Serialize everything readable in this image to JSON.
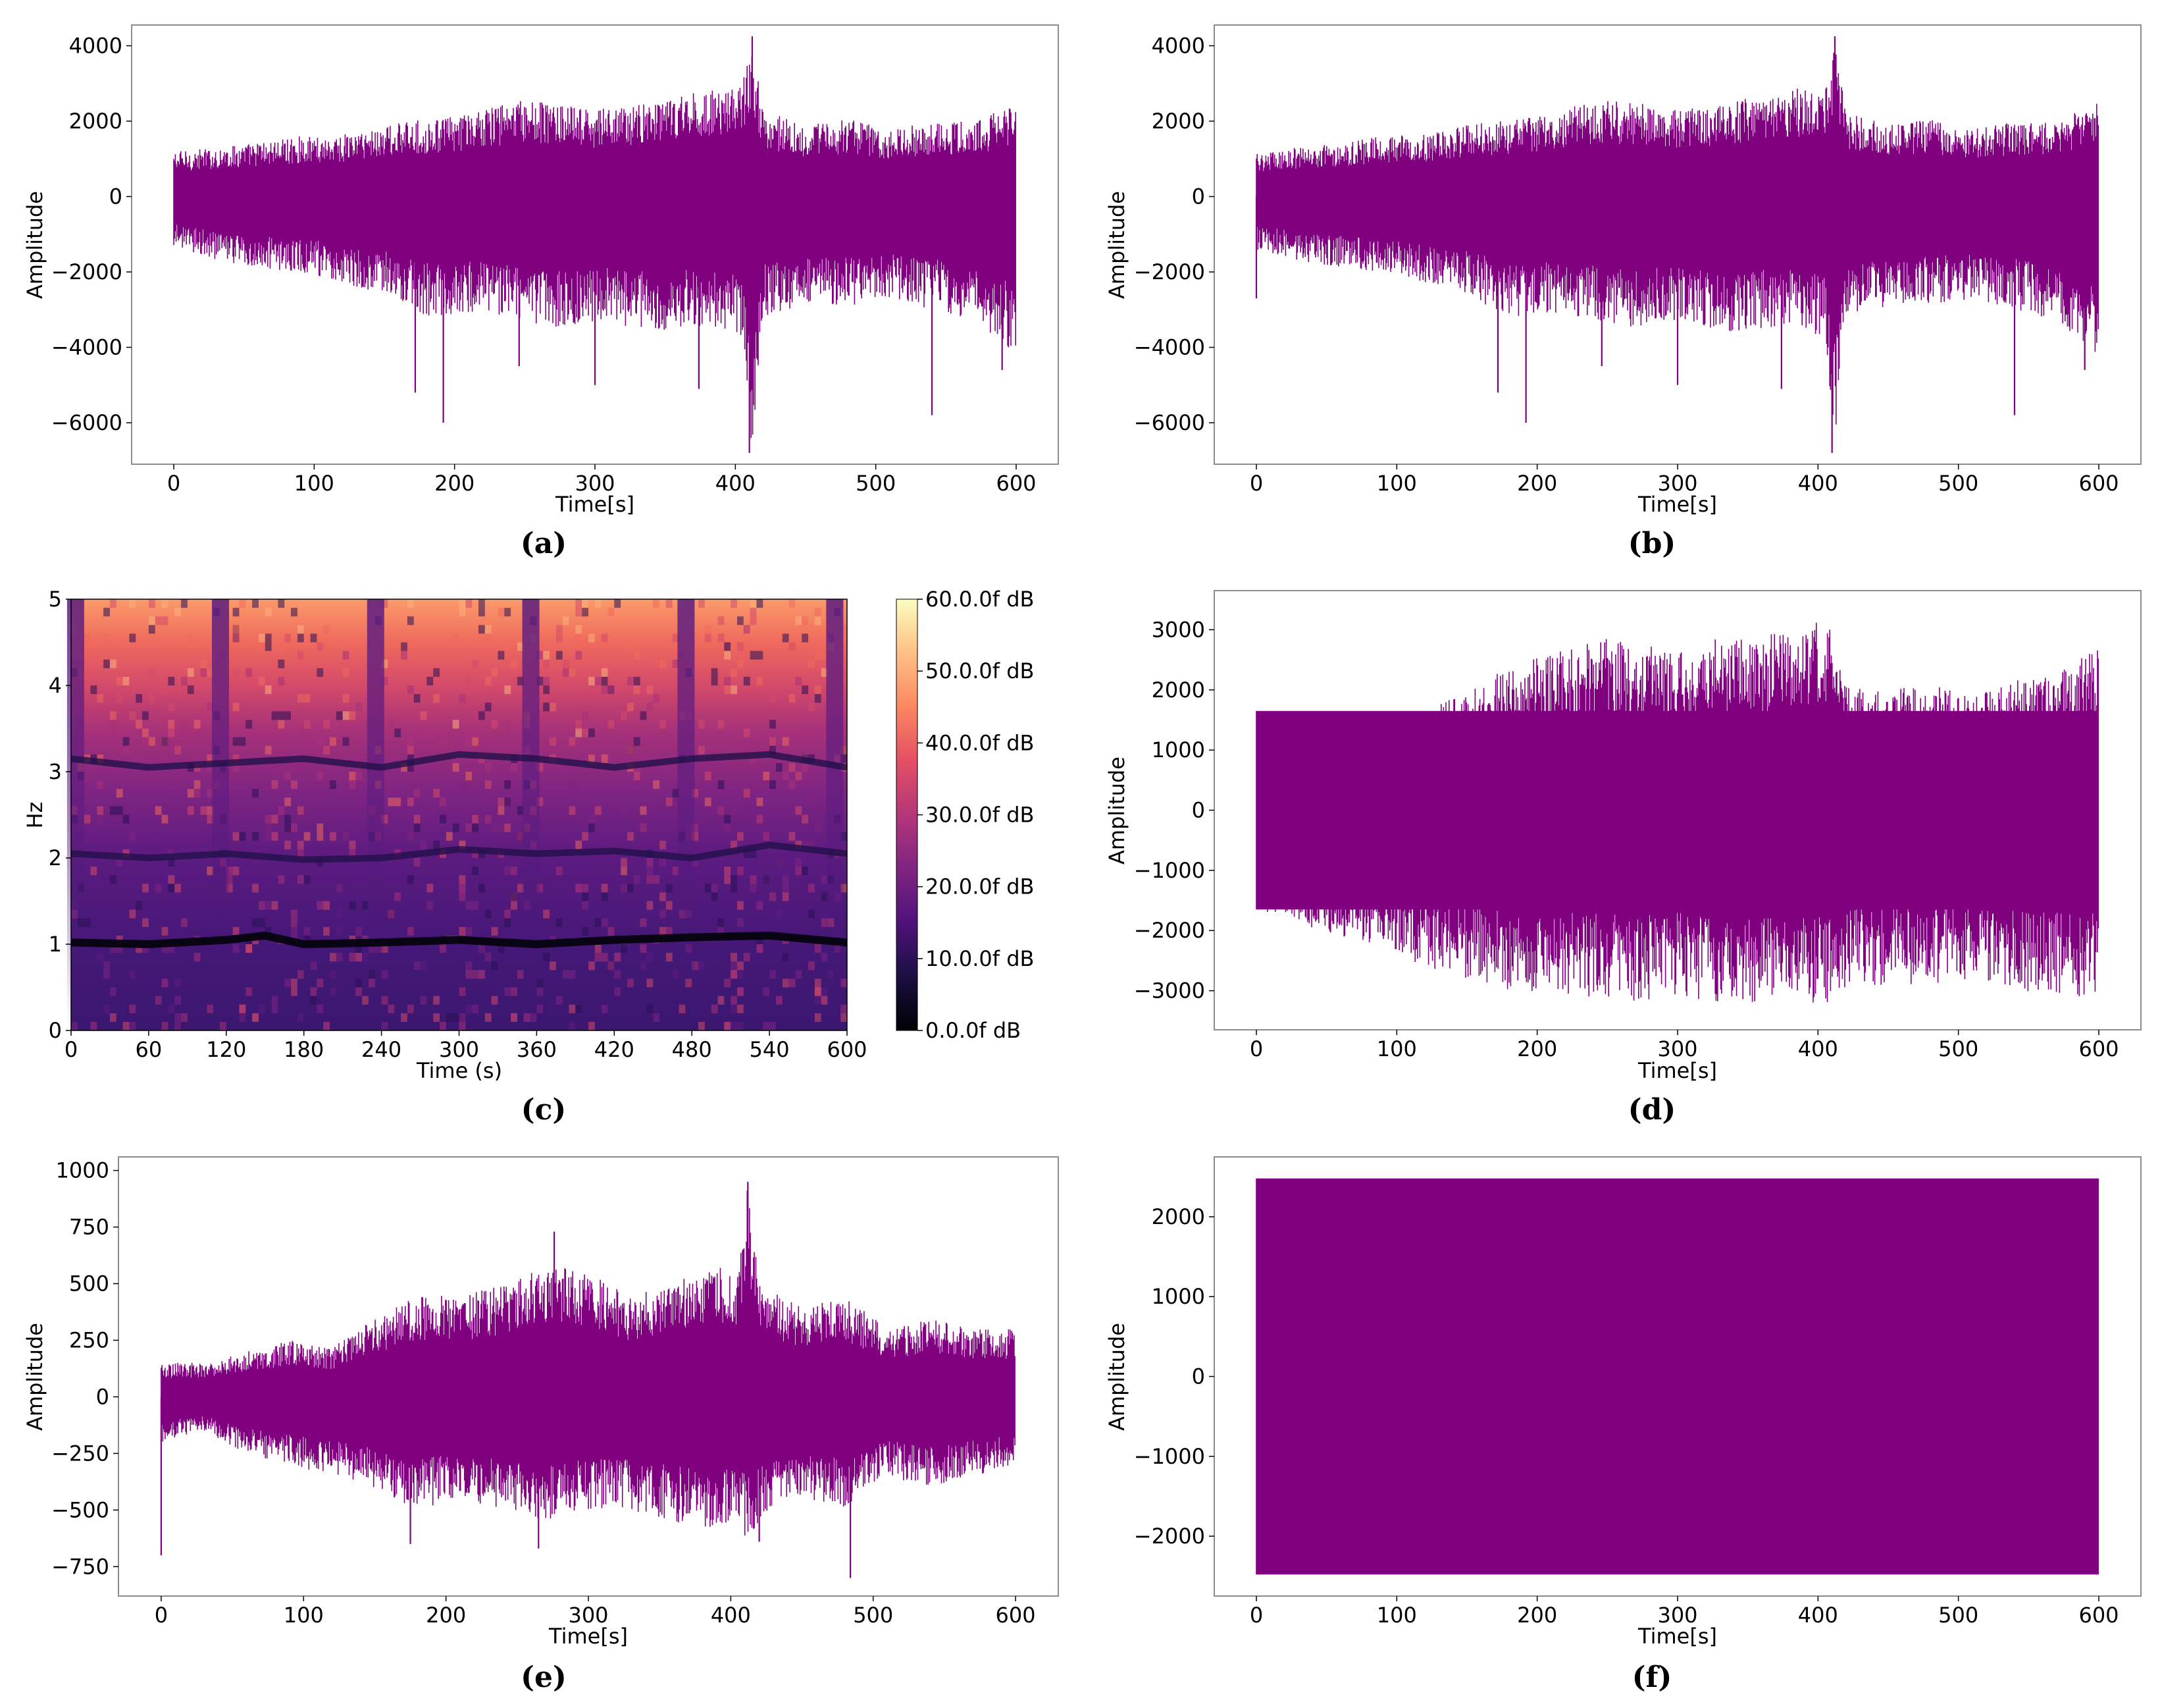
{
  "figure": {
    "signal_color": "#800080",
    "panels": [
      {
        "id": "a",
        "caption": "(a)",
        "chart_data": {
          "type": "line",
          "title": "",
          "xlabel": "Time[s]",
          "ylabel": "Amplitude",
          "xlim": [
            -30,
            630
          ],
          "ylim": [
            -7100,
            4550
          ],
          "xticks": [
            0,
            100,
            200,
            300,
            400,
            500,
            600
          ],
          "yticks": [
            -6000,
            -4000,
            -2000,
            0,
            2000,
            4000
          ],
          "series": [
            {
              "name": "signal",
              "style": "envelope",
              "x": [
                0,
                30,
                60,
                90,
                120,
                150,
                180,
                210,
                240,
                270,
                300,
                330,
                360,
                390,
                405,
                412,
                420,
                450,
                480,
                510,
                540,
                570,
                600
              ],
              "upper": [
                1200,
                1300,
                1450,
                1600,
                1650,
                1900,
                2050,
                2200,
                2550,
                2500,
                2300,
                2450,
                2700,
                2900,
                3000,
                4250,
                2300,
                1900,
                2050,
                1800,
                2000,
                2000,
                2500
              ],
              "lower": [
                -1300,
                -1700,
                -1900,
                -2000,
                -2300,
                -2600,
                -3200,
                -3100,
                -3300,
                -3500,
                -3300,
                -3600,
                -3500,
                -3500,
                -3800,
                -6800,
                -3200,
                -2900,
                -2900,
                -2700,
                -3000,
                -3300,
                -4200
              ],
              "spikes": [
                [
                  172,
                  -5200
                ],
                [
                  192,
                  -6000
                ],
                [
                  246,
                  -4500
                ],
                [
                  300,
                  -5000
                ],
                [
                  374,
                  -5100
                ],
                [
                  410,
                  -6800
                ],
                [
                  412,
                  4250
                ],
                [
                  540,
                  -5800
                ],
                [
                  590,
                  -4600
                ]
              ]
            }
          ]
        }
      },
      {
        "id": "b",
        "caption": "(b)",
        "chart_data": {
          "type": "line",
          "title": "",
          "xlabel": "Time[s]",
          "ylabel": "Amplitude",
          "xlim": [
            -30,
            630
          ],
          "ylim": [
            -7100,
            4550
          ],
          "xticks": [
            0,
            100,
            200,
            300,
            400,
            500,
            600
          ],
          "yticks": [
            -6000,
            -4000,
            -2000,
            0,
            2000,
            4000
          ],
          "series": [
            {
              "name": "signal",
              "style": "envelope",
              "x": [
                0,
                30,
                60,
                90,
                120,
                150,
                180,
                210,
                240,
                270,
                300,
                330,
                360,
                390,
                405,
                412,
                420,
                450,
                480,
                510,
                540,
                570,
                600
              ],
              "upper": [
                1200,
                1300,
                1450,
                1600,
                1650,
                1900,
                2050,
                2200,
                2550,
                2500,
                2300,
                2450,
                2700,
                2900,
                3000,
                4250,
                2300,
                1900,
                2050,
                1800,
                2000,
                2000,
                2500
              ],
              "lower": [
                -1400,
                -1700,
                -1900,
                -2000,
                -2300,
                -2600,
                -3200,
                -3100,
                -3300,
                -3500,
                -3300,
                -3600,
                -3500,
                -3500,
                -3800,
                -6800,
                -3200,
                -2900,
                -2900,
                -2700,
                -3000,
                -3300,
                -4200
              ],
              "spikes": [
                [
                  0,
                  -2700
                ],
                [
                  172,
                  -5200
                ],
                [
                  192,
                  -6000
                ],
                [
                  246,
                  -4500
                ],
                [
                  300,
                  -5000
                ],
                [
                  374,
                  -5100
                ],
                [
                  410,
                  -6800
                ],
                [
                  412,
                  4250
                ],
                [
                  540,
                  -5800
                ],
                [
                  590,
                  -4600
                ]
              ]
            }
          ]
        }
      },
      {
        "id": "c",
        "caption": "(c)",
        "chart_data": {
          "type": "heatmap",
          "title": "",
          "xlabel": "Time (s)",
          "ylabel": "Hz",
          "xlim": [
            0,
            600
          ],
          "ylim": [
            0,
            5
          ],
          "xticks": [
            0,
            60,
            120,
            180,
            240,
            300,
            360,
            420,
            480,
            540,
            600
          ],
          "yticks": [
            0,
            1,
            2,
            3,
            4,
            5
          ],
          "colorbar": {
            "min": 0,
            "max": 60,
            "ticks": [
              0,
              10,
              20,
              30,
              40,
              50,
              60
            ],
            "tick_labels": [
              "0.0.0f dB",
              "10.0.0f dB",
              "20.0.0f dB",
              "30.0.0f dB",
              "40.0.0f dB",
              "50.0.0f dB",
              "60.0.0f dB"
            ],
            "colormap": "magma"
          },
          "dark_bands": [
            {
              "name": "band-1hz",
              "x": [
                0,
                60,
                120,
                150,
                180,
                240,
                300,
                360,
                420,
                480,
                540,
                600
              ],
              "y": [
                1.02,
                1.0,
                1.05,
                1.1,
                1.0,
                1.02,
                1.05,
                1.0,
                1.05,
                1.08,
                1.1,
                1.02
              ]
            },
            {
              "name": "band-2hz",
              "x": [
                0,
                60,
                120,
                180,
                240,
                300,
                360,
                420,
                480,
                540,
                600
              ],
              "y": [
                2.05,
                2.0,
                2.05,
                1.98,
                2.0,
                2.1,
                2.05,
                2.08,
                2.0,
                2.15,
                2.05
              ]
            },
            {
              "name": "band-3hz",
              "x": [
                0,
                60,
                120,
                180,
                240,
                300,
                360,
                420,
                480,
                540,
                600
              ],
              "y": [
                3.15,
                3.05,
                3.1,
                3.15,
                3.05,
                3.2,
                3.15,
                3.05,
                3.15,
                3.2,
                3.05
              ]
            }
          ],
          "dark_columns": [
            3,
            115,
            235,
            355,
            475,
            590
          ]
        }
      },
      {
        "id": "d",
        "caption": "(d)",
        "chart_data": {
          "type": "line",
          "title": "",
          "xlabel": "Time[s]",
          "ylabel": "Amplitude",
          "xlim": [
            -30,
            630
          ],
          "ylim": [
            -3650,
            3650
          ],
          "xticks": [
            0,
            100,
            200,
            300,
            400,
            500,
            600
          ],
          "yticks": [
            -3000,
            -2000,
            -1000,
            0,
            1000,
            2000,
            3000
          ],
          "series": [
            {
              "name": "signal",
              "style": "envelope",
              "x": [
                0,
                30,
                60,
                90,
                120,
                150,
                180,
                210,
                240,
                270,
                300,
                330,
                360,
                390,
                410,
                420,
                450,
                480,
                510,
                540,
                570,
                600
              ],
              "upper": [
                1650,
                1650,
                1650,
                1650,
                1650,
                2000,
                2400,
                2600,
                2900,
                2800,
                2600,
                2900,
                2900,
                3100,
                3200,
                2100,
                2000,
                2100,
                1900,
                2200,
                2300,
                2700
              ],
              "lower": [
                -1650,
                -1900,
                -2100,
                -2300,
                -2600,
                -2800,
                -3000,
                -3100,
                -3100,
                -3200,
                -3100,
                -3200,
                -3200,
                -3200,
                -3200,
                -3000,
                -2900,
                -2900,
                -2800,
                -3000,
                -3100,
                -3100
              ],
              "clip_level": 1650
            }
          ]
        }
      },
      {
        "id": "e",
        "caption": "(e)",
        "chart_data": {
          "type": "line",
          "title": "",
          "xlabel": "Time[s]",
          "ylabel": "Amplitude",
          "xlim": [
            -30,
            630
          ],
          "ylim": [
            -880,
            1060
          ],
          "xticks": [
            0,
            100,
            200,
            300,
            400,
            500,
            600
          ],
          "yticks": [
            -750,
            -500,
            -250,
            0,
            250,
            500,
            750,
            1000
          ],
          "series": [
            {
              "name": "signal",
              "style": "envelope",
              "x": [
                0,
                30,
                60,
                90,
                120,
                150,
                180,
                210,
                240,
                270,
                300,
                330,
                360,
                390,
                405,
                412,
                420,
                450,
                480,
                510,
                540,
                570,
                600
              ],
              "upper": [
                150,
                150,
                200,
                250,
                220,
                350,
                450,
                450,
                500,
                600,
                550,
                450,
                500,
                600,
                550,
                950,
                500,
                400,
                450,
                300,
                350,
                300,
                300
              ],
              "lower": [
                -200,
                -150,
                -250,
                -300,
                -350,
                -400,
                -500,
                -450,
                -500,
                -550,
                -500,
                -500,
                -550,
                -600,
                -550,
                -650,
                -550,
                -450,
                -500,
                -350,
                -400,
                -350,
                -300
              ],
              "spikes": [
                [
                  0,
                  -700
                ],
                [
                  175,
                  -650
                ],
                [
                  265,
                  -670
                ],
                [
                  412,
                  950
                ],
                [
                  484,
                  -800
                ],
                [
                  420,
                  -640
                ],
                [
                  276,
                  730
                ]
              ]
            }
          ]
        }
      },
      {
        "id": "f",
        "caption": "(f)",
        "chart_data": {
          "type": "line",
          "title": "",
          "xlabel": "Time[s]",
          "ylabel": "Amplitude",
          "xlim": [
            -30,
            630
          ],
          "ylim": [
            -2750,
            2750
          ],
          "xticks": [
            0,
            100,
            200,
            300,
            400,
            500,
            600
          ],
          "yticks": [
            -2000,
            -1000,
            0,
            1000,
            2000
          ],
          "series": [
            {
              "name": "signal",
              "style": "saturated",
              "x": [
                0,
                600
              ],
              "upper": [
                2480,
                2480
              ],
              "lower": [
                -2480,
                -2480
              ]
            }
          ]
        }
      }
    ]
  }
}
